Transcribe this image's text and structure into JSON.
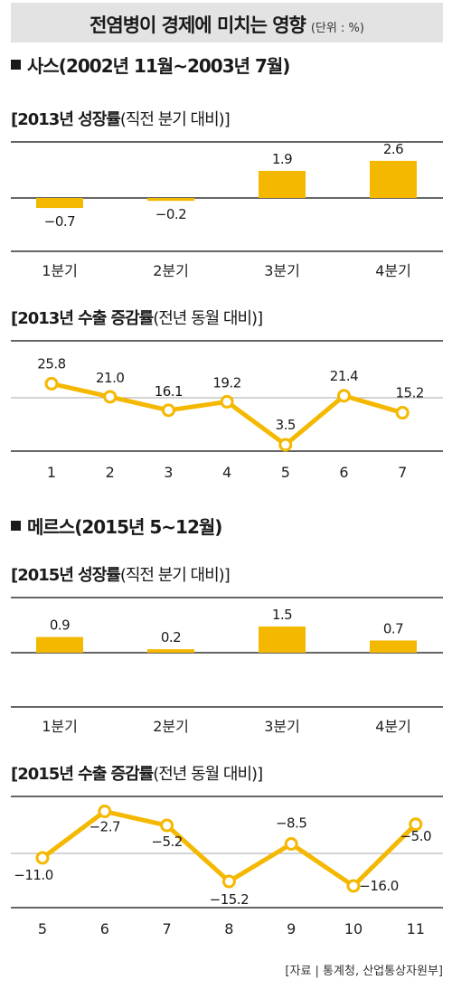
{
  "header": {
    "title": "전염병이 경제에 미치는 영향",
    "unit": "(단위 : %)"
  },
  "sections": [
    {
      "heading": "사스(2002년 11월~2003년 7월)"
    },
    {
      "heading": "메르스(2015년 5~12월)"
    }
  ],
  "colors": {
    "accent": "#f5b800",
    "axis": "#333333",
    "title_bg": "#e3e3e3",
    "rule": "#aaaaaa"
  },
  "chart_data": [
    {
      "type": "bar",
      "title": "[2013년 성장률",
      "title_paren": "(직전 분기 대비)]",
      "categories": [
        "1분기",
        "2분기",
        "3분기",
        "4분기"
      ],
      "values": [
        -0.7,
        -0.2,
        1.9,
        2.6
      ],
      "labels": [
        "−0.7",
        "−0.2",
        "1.9",
        "2.6"
      ]
    },
    {
      "type": "line",
      "title": "[2013년 수출 증감률",
      "title_paren": "(전년 동월 대비)]",
      "categories": [
        "1",
        "2",
        "3",
        "4",
        "5",
        "6",
        "7"
      ],
      "values": [
        25.8,
        21.0,
        16.1,
        19.2,
        3.5,
        21.4,
        15.2
      ],
      "labels": [
        "25.8",
        "21.0",
        "16.1",
        "19.2",
        "3.5",
        "21.4",
        "15.2"
      ]
    },
    {
      "type": "bar",
      "title": "[2015년 성장률",
      "title_paren": "(직전 분기 대비)]",
      "categories": [
        "1분기",
        "2분기",
        "3분기",
        "4분기"
      ],
      "values": [
        0.9,
        0.2,
        1.5,
        0.7
      ],
      "labels": [
        "0.9",
        "0.2",
        "1.5",
        "0.7"
      ]
    },
    {
      "type": "line",
      "title": "[2015년 수출 증감률",
      "title_paren": "(전년 동월 대비)]",
      "categories": [
        "5",
        "6",
        "7",
        "8",
        "9",
        "10",
        "11"
      ],
      "values": [
        -11.0,
        -2.7,
        -5.2,
        -15.2,
        -8.5,
        -16.0,
        -5.0
      ],
      "labels": [
        "−11.0",
        "−2.7",
        "−5.2",
        "−15.2",
        "−8.5",
        "−16.0",
        "−5.0"
      ]
    }
  ],
  "source": "[자료 | 통계청, 산업통상자원부]"
}
